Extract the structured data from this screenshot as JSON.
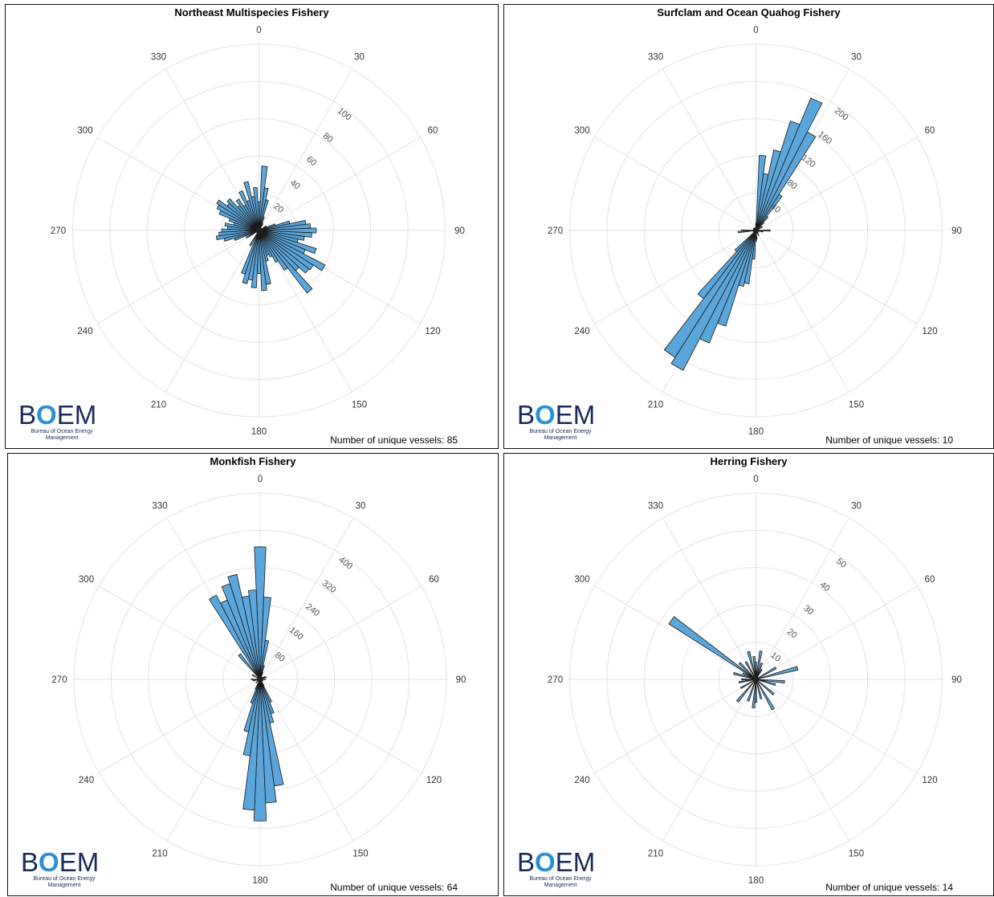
{
  "charts": [
    {
      "title": "Northeast Multispecies Fishery",
      "footer": "Number of unique vessels: 85",
      "logo_text": "BOEM",
      "logo_sub": "Bureau of Ocean Energy Management",
      "accent": "#5aa5da"
    },
    {
      "title": "Surfclam and Ocean Quahog Fishery",
      "footer": "Number of unique vessels: 10",
      "logo_text": "BOEM",
      "logo_sub": "Bureau of Ocean Energy Management",
      "accent": "#5aa5da"
    },
    {
      "title": "Monkfish Fishery",
      "footer": "Number of unique vessels: 64",
      "logo_text": "BOEM",
      "logo_sub": "Bureau of Ocean Energy Management",
      "accent": "#5aa5da"
    },
    {
      "title": "Herring Fishery",
      "footer": "Number of unique vessels: 14",
      "logo_text": "BOEM",
      "logo_sub": "Bureau of Ocean Energy Management",
      "accent": "#5aa5da"
    }
  ],
  "chart_data": [
    {
      "type": "polar-bar",
      "title": "Northeast Multispecies Fishery",
      "angle_labels": [
        "0",
        "30",
        "60",
        "90",
        "120",
        "150",
        "180",
        "210",
        "240",
        "270",
        "300",
        "330"
      ],
      "radial_ticks": [
        20,
        40,
        60,
        80,
        100
      ],
      "rmax": 130,
      "bin_width_deg": 5,
      "bins": [
        [
          0,
          20
        ],
        [
          5,
          45
        ],
        [
          10,
          30
        ],
        [
          15,
          22
        ],
        [
          20,
          10
        ],
        [
          25,
          6
        ],
        [
          30,
          5
        ],
        [
          60,
          6
        ],
        [
          70,
          12
        ],
        [
          75,
          22
        ],
        [
          80,
          33
        ],
        [
          85,
          36
        ],
        [
          90,
          40
        ],
        [
          95,
          37
        ],
        [
          100,
          32
        ],
        [
          105,
          28
        ],
        [
          110,
          42
        ],
        [
          115,
          35
        ],
        [
          120,
          52
        ],
        [
          125,
          45
        ],
        [
          130,
          44
        ],
        [
          135,
          38
        ],
        [
          140,
          55
        ],
        [
          145,
          33
        ],
        [
          150,
          25
        ],
        [
          155,
          20
        ],
        [
          160,
          18
        ],
        [
          165,
          22
        ],
        [
          170,
          38
        ],
        [
          175,
          42
        ],
        [
          180,
          30
        ],
        [
          185,
          40
        ],
        [
          190,
          35
        ],
        [
          195,
          38
        ],
        [
          200,
          32
        ],
        [
          210,
          12
        ],
        [
          240,
          10
        ],
        [
          250,
          18
        ],
        [
          255,
          25
        ],
        [
          260,
          30
        ],
        [
          265,
          28
        ],
        [
          270,
          26
        ],
        [
          275,
          22
        ],
        [
          280,
          24
        ],
        [
          285,
          18
        ],
        [
          290,
          22
        ],
        [
          295,
          30
        ],
        [
          300,
          33
        ],
        [
          305,
          35
        ],
        [
          310,
          28
        ],
        [
          315,
          30
        ],
        [
          320,
          22
        ],
        [
          325,
          26
        ],
        [
          330,
          20
        ],
        [
          335,
          30
        ],
        [
          340,
          22
        ],
        [
          345,
          35
        ],
        [
          350,
          24
        ],
        [
          355,
          30
        ]
      ]
    },
    {
      "type": "polar-bar",
      "title": "Surfclam and Ocean Quahog Fishery",
      "angle_labels": [
        "0",
        "30",
        "60",
        "90",
        "120",
        "150",
        "180",
        "210",
        "240",
        "270",
        "300",
        "330"
      ],
      "radial_ticks": [
        40,
        80,
        120,
        160,
        200
      ],
      "rmax": 260,
      "bin_width_deg": 5,
      "bins": [
        [
          0,
          10
        ],
        [
          5,
          105
        ],
        [
          10,
          80
        ],
        [
          15,
          115
        ],
        [
          20,
          160
        ],
        [
          25,
          200
        ],
        [
          30,
          155
        ],
        [
          35,
          60
        ],
        [
          40,
          25
        ],
        [
          45,
          15
        ],
        [
          60,
          10
        ],
        [
          90,
          20
        ],
        [
          100,
          10
        ],
        [
          150,
          8
        ],
        [
          175,
          12
        ],
        [
          180,
          15
        ],
        [
          185,
          40
        ],
        [
          190,
          75
        ],
        [
          195,
          80
        ],
        [
          200,
          140
        ],
        [
          205,
          170
        ],
        [
          210,
          220
        ],
        [
          215,
          210
        ],
        [
          220,
          120
        ],
        [
          225,
          40
        ],
        [
          265,
          25
        ],
        [
          270,
          20
        ]
      ]
    },
    {
      "type": "polar-bar",
      "title": "Monkfish Fishery",
      "angle_labels": [
        "0",
        "30",
        "60",
        "90",
        "120",
        "150",
        "180",
        "210",
        "240",
        "270",
        "300",
        "330"
      ],
      "radial_ticks": [
        80,
        160,
        240,
        320,
        400
      ],
      "rmax": 520,
      "bin_width_deg": 5,
      "bins": [
        [
          0,
          370
        ],
        [
          5,
          230
        ],
        [
          10,
          110
        ],
        [
          15,
          40
        ],
        [
          20,
          20
        ],
        [
          60,
          15
        ],
        [
          70,
          18
        ],
        [
          90,
          15
        ],
        [
          150,
          20
        ],
        [
          155,
          70
        ],
        [
          160,
          100
        ],
        [
          165,
          125
        ],
        [
          170,
          300
        ],
        [
          175,
          345
        ],
        [
          180,
          395
        ],
        [
          185,
          365
        ],
        [
          190,
          215
        ],
        [
          195,
          150
        ],
        [
          200,
          70
        ],
        [
          205,
          30
        ],
        [
          230,
          15
        ],
        [
          260,
          20
        ],
        [
          270,
          25
        ],
        [
          300,
          25
        ],
        [
          320,
          90
        ],
        [
          330,
          265
        ],
        [
          335,
          240
        ],
        [
          340,
          280
        ],
        [
          345,
          300
        ],
        [
          350,
          235
        ],
        [
          355,
          250
        ]
      ]
    },
    {
      "type": "polar-bar",
      "title": "Herring Fishery",
      "angle_labels": [
        "0",
        "30",
        "60",
        "90",
        "120",
        "150",
        "180",
        "210",
        "240",
        "270",
        "300",
        "330"
      ],
      "radial_ticks": [
        10,
        20,
        30,
        40,
        50
      ],
      "rmax": 65,
      "bin_width_deg": 5,
      "bins": [
        [
          0,
          6
        ],
        [
          10,
          10
        ],
        [
          20,
          6
        ],
        [
          30,
          4
        ],
        [
          60,
          8
        ],
        [
          75,
          15
        ],
        [
          95,
          10
        ],
        [
          105,
          7
        ],
        [
          130,
          8
        ],
        [
          150,
          12
        ],
        [
          165,
          7
        ],
        [
          180,
          8
        ],
        [
          185,
          10
        ],
        [
          200,
          8
        ],
        [
          220,
          10
        ],
        [
          240,
          6
        ],
        [
          260,
          6
        ],
        [
          270,
          5
        ],
        [
          285,
          8
        ],
        [
          295,
          5
        ],
        [
          305,
          36
        ],
        [
          315,
          8
        ],
        [
          330,
          7
        ],
        [
          345,
          10
        ],
        [
          355,
          8
        ]
      ]
    }
  ]
}
